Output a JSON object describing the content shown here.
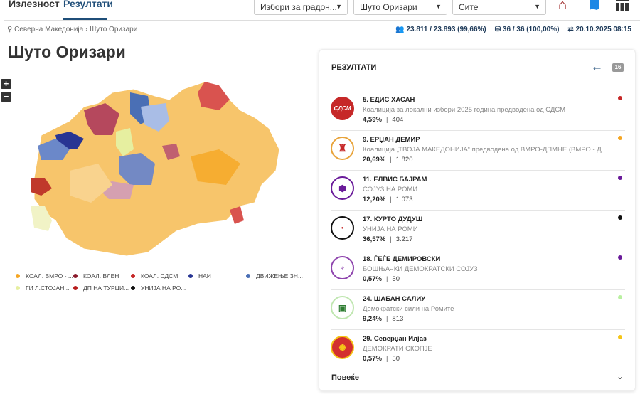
{
  "tabs": [
    {
      "label": "Излезност"
    },
    {
      "label": "Резултати"
    }
  ],
  "filters": {
    "election": "Избори за градон...",
    "municipality": "Шуто Оризари",
    "scope": "Сите"
  },
  "breadcrumb": "Северна Македонија › Шуто Оризари",
  "stats": {
    "turnout": "23.811 / 23.893 (99,66%)",
    "stations": "36 / 36 (100,00%)",
    "updated": "20.10.2025 08:15"
  },
  "title": "Шуто Оризари",
  "zoom": {
    "in": "+",
    "out": "−"
  },
  "legend": [
    {
      "label": "КОАЛ. ВМРО - ...",
      "color": "#f5a623"
    },
    {
      "label": "КОАЛ. ВЛЕН",
      "color": "#8b1a2b"
    },
    {
      "label": "КОАЛ. СДСМ",
      "color": "#c62828"
    },
    {
      "label": "НАИ",
      "color": "#283593"
    },
    {
      "label": "ДВИЖЕЊЕ ЗН...",
      "color": "#4a6fb5"
    },
    {
      "label": "ГИ Л.СТОЈАН...",
      "color": "#e6efa0"
    },
    {
      "label": "ДП НА ТУРЦИ...",
      "color": "#b71c1c"
    },
    {
      "label": "УНИЈА НА РО...",
      "color": "#111111"
    }
  ],
  "panel": {
    "title": "РЕЗУЛТАТИ",
    "count": "16",
    "more": "Повеќе",
    "results": [
      {
        "name": "5. ЕДИС ХАСАН",
        "party": "Коалиција за локални избори 2025 година предводена од СДСМ",
        "pct": "4,59%",
        "votes": "404",
        "color": "#c62828",
        "logo": "СДСМ"
      },
      {
        "name": "9. ЕРЏАН ДЕМИР",
        "party": "Коалиција „ТВОЈА МАКЕДОНИЈА“ предводена од ВМРО-ДПМНЕ (ВМРО - Дем...",
        "pct": "20,69%",
        "votes": "1.820",
        "color": "#f5a623",
        "logo": ""
      },
      {
        "name": "11. ЕЛВИС БАЈРАМ",
        "party": "СОЈУЗ НА РОМИ",
        "pct": "12,20%",
        "votes": "1.073",
        "color": "#6a1b9a",
        "logo": ""
      },
      {
        "name": "17. КУРТО ДУДУШ",
        "party": "УНИЈА НА РОМИ",
        "pct": "36,57%",
        "votes": "3.217",
        "color": "#111111",
        "logo": ""
      },
      {
        "name": "18. ЃЕЃЕ ДЕМИРОВСКИ",
        "party": "БОШЊАЧКИ ДЕМОКРАТСКИ СОЈУЗ",
        "pct": "0,57%",
        "votes": "50",
        "color": "#6a1b9a",
        "logo": ""
      },
      {
        "name": "24. ШАБАН САЛИУ",
        "party": "Демократски сили на Ромите",
        "pct": "9,24%",
        "votes": "813",
        "color": "#b9f0a0",
        "logo": ""
      },
      {
        "name": "29. Северџан Илјаз",
        "party": "ДЕМОКРАТИ СКОПЈЕ",
        "pct": "0,57%",
        "votes": "50",
        "color": "#f5c518",
        "logo": ""
      }
    ]
  }
}
